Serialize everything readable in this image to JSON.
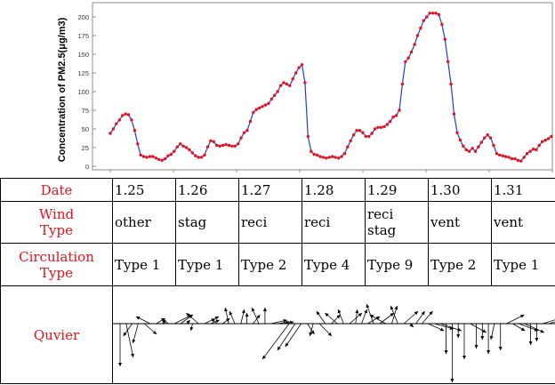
{
  "chart_data": {
    "type": "line",
    "ylabel": "Concentration of PM2.5(μg/m3)",
    "ylim": [
      0,
      210
    ],
    "yticks": [
      0,
      25,
      50,
      75,
      100,
      125,
      150,
      175,
      200
    ],
    "series_color": "#1f3fd6",
    "marker_color": "#e8101a",
    "values": [
      44,
      50,
      57,
      62,
      68,
      70,
      69,
      62,
      48,
      30,
      15,
      13,
      12,
      13,
      13,
      11,
      9,
      8,
      10,
      14,
      16,
      20,
      26,
      30,
      27,
      25,
      22,
      18,
      14,
      12,
      12,
      15,
      26,
      34,
      33,
      28,
      27,
      28,
      29,
      28,
      27,
      27,
      30,
      38,
      45,
      48,
      60,
      72,
      76,
      78,
      80,
      82,
      84,
      90,
      95,
      100,
      108,
      112,
      110,
      108,
      117,
      125,
      132,
      136,
      112,
      40,
      20,
      16,
      15,
      13,
      12,
      11,
      12,
      13,
      12,
      11,
      13,
      17,
      26,
      34,
      42,
      48,
      48,
      45,
      40,
      40,
      44,
      50,
      52,
      52,
      53,
      56,
      60,
      66,
      68,
      75,
      110,
      140,
      145,
      153,
      163,
      175,
      185,
      195,
      200,
      205,
      205,
      205,
      203,
      190,
      170,
      140,
      110,
      70,
      45,
      35,
      27,
      22,
      20,
      24,
      20,
      26,
      32,
      38,
      42,
      38,
      28,
      17,
      15,
      14,
      13,
      12,
      10,
      10,
      8,
      7,
      12,
      17,
      20,
      23,
      22,
      28,
      33,
      35,
      37,
      40
    ]
  },
  "table": {
    "rows": [
      {
        "header": "Date",
        "cells": [
          "1.25",
          "1.26",
          "1.27",
          "1.28",
          "1.29",
          "1.30",
          "1.31"
        ]
      },
      {
        "header_lines": [
          "Wind",
          "Type"
        ],
        "cells": [
          [
            "other"
          ],
          [
            "stag"
          ],
          [
            "reci"
          ],
          [
            "reci"
          ],
          [
            "reci",
            "stag"
          ],
          [
            "vent"
          ],
          [
            "vent"
          ]
        ]
      },
      {
        "header_lines": [
          "Circulation",
          "Type"
        ],
        "cells": [
          "Type 1",
          "Type 1",
          "Type 2",
          "Type 4",
          "Type 9",
          "Type 2",
          "Type 1"
        ]
      },
      {
        "header": "Quvier"
      }
    ]
  },
  "quiver": {
    "arrows": [
      [
        0,
        48
      ],
      [
        8,
        38
      ],
      [
        -10,
        14
      ],
      [
        -6,
        22
      ],
      [
        14,
        12
      ],
      [
        -16,
        -8
      ],
      [
        10,
        -6
      ],
      [
        4,
        -4
      ],
      [
        -8,
        -6
      ],
      [
        20,
        -10
      ],
      [
        14,
        -10
      ],
      [
        4,
        -4
      ],
      [
        -2,
        8
      ],
      [
        -14,
        -12
      ],
      [
        16,
        -8
      ],
      [
        10,
        -4
      ],
      [
        -6,
        -6
      ],
      [
        8,
        -6
      ],
      [
        -4,
        -18
      ],
      [
        -6,
        -14
      ],
      [
        4,
        -16
      ],
      [
        0,
        -12
      ],
      [
        8,
        -10
      ],
      [
        -8,
        -18
      ],
      [
        0,
        -18
      ],
      [
        18,
        -4
      ],
      [
        14,
        -2
      ],
      [
        12,
        -2
      ],
      [
        -30,
        40
      ],
      [
        -20,
        30
      ],
      [
        -18,
        26
      ],
      [
        8,
        12
      ],
      [
        -4,
        14
      ],
      [
        14,
        14
      ],
      [
        -10,
        -14
      ],
      [
        10,
        -10
      ],
      [
        -14,
        -12
      ],
      [
        -6,
        -16
      ],
      [
        14,
        -12
      ],
      [
        2,
        -16
      ],
      [
        6,
        -16
      ],
      [
        14,
        -8
      ],
      [
        -8,
        -22
      ],
      [
        16,
        -12
      ],
      [
        -18,
        -10
      ],
      [
        6,
        -20
      ],
      [
        -8,
        -20
      ],
      [
        16,
        -14
      ],
      [
        4,
        4
      ],
      [
        10,
        -14
      ],
      [
        12,
        -14
      ],
      [
        18,
        8
      ],
      [
        22,
        6
      ],
      [
        24,
        8
      ],
      [
        0,
        34
      ],
      [
        0,
        66
      ],
      [
        0,
        16
      ],
      [
        0,
        40
      ],
      [
        18,
        10
      ],
      [
        0,
        28
      ],
      [
        0,
        18
      ],
      [
        0,
        34
      ],
      [
        -4,
        18
      ],
      [
        0,
        30
      ],
      [
        20,
        -10
      ],
      [
        14,
        8
      ],
      [
        22,
        8
      ],
      [
        22,
        10
      ],
      [
        0,
        24
      ],
      [
        0,
        20
      ],
      [
        26,
        -8
      ],
      [
        14,
        -4
      ]
    ]
  }
}
